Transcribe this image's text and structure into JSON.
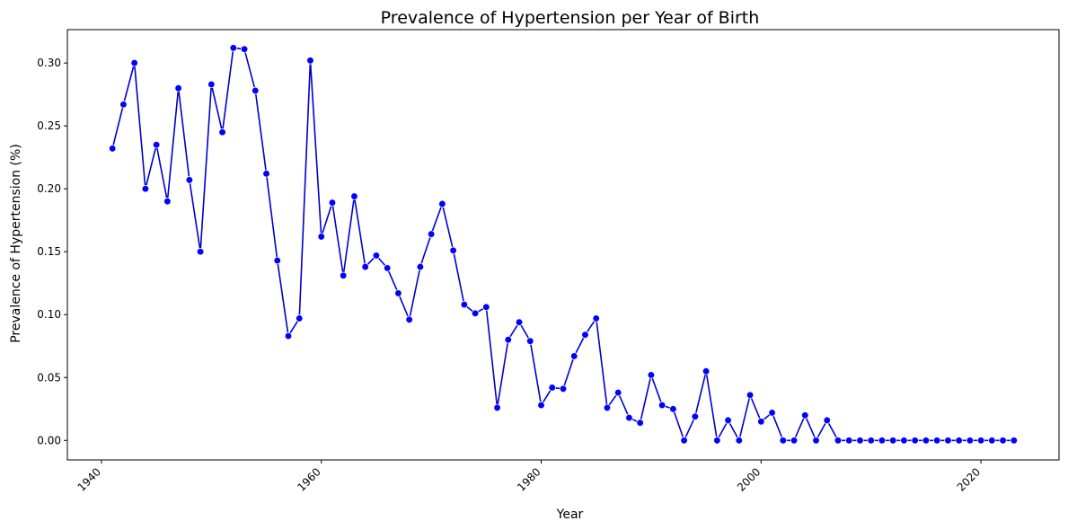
{
  "chart_data": {
    "type": "line",
    "title": "Prevalence of Hypertension per Year of Birth",
    "xlabel": "Year",
    "ylabel": "Prevalence of Hypertension (%)",
    "xlim": [
      1936.9,
      2027.1
    ],
    "ylim": [
      -0.0155,
      0.3265
    ],
    "xticks": [
      1940,
      1960,
      1980,
      2000,
      2020
    ],
    "yticks": [
      0.0,
      0.05,
      0.1,
      0.15,
      0.2,
      0.25,
      0.3
    ],
    "xtick_labels": [
      "1940",
      "1960",
      "1980",
      "2000",
      "2020"
    ],
    "ytick_labels": [
      "0.00",
      "0.05",
      "0.10",
      "0.15",
      "0.20",
      "0.25",
      "0.30"
    ],
    "grid": false,
    "line_color": "#0000cc",
    "marker_color": "#0000ff",
    "x": [
      1941,
      1942,
      1943,
      1944,
      1945,
      1946,
      1947,
      1948,
      1949,
      1950,
      1951,
      1952,
      1953,
      1954,
      1955,
      1956,
      1957,
      1958,
      1959,
      1960,
      1961,
      1962,
      1963,
      1964,
      1965,
      1966,
      1967,
      1968,
      1969,
      1970,
      1971,
      1972,
      1973,
      1974,
      1975,
      1976,
      1977,
      1978,
      1979,
      1980,
      1981,
      1982,
      1983,
      1984,
      1985,
      1986,
      1987,
      1988,
      1989,
      1990,
      1991,
      1992,
      1993,
      1994,
      1995,
      1996,
      1997,
      1998,
      1999,
      2000,
      2001,
      2002,
      2003,
      2004,
      2005,
      2006,
      2007,
      2008,
      2009,
      2010,
      2011,
      2012,
      2013,
      2014,
      2015,
      2016,
      2017,
      2018,
      2019,
      2020,
      2021,
      2022,
      2023
    ],
    "y": [
      0.232,
      0.267,
      0.3,
      0.2,
      0.235,
      0.19,
      0.28,
      0.207,
      0.15,
      0.283,
      0.245,
      0.312,
      0.311,
      0.278,
      0.212,
      0.143,
      0.083,
      0.097,
      0.302,
      0.162,
      0.189,
      0.131,
      0.194,
      0.138,
      0.147,
      0.137,
      0.117,
      0.096,
      0.138,
      0.164,
      0.188,
      0.151,
      0.108,
      0.101,
      0.106,
      0.026,
      0.08,
      0.094,
      0.079,
      0.028,
      0.042,
      0.041,
      0.067,
      0.084,
      0.097,
      0.026,
      0.038,
      0.018,
      0.014,
      0.052,
      0.028,
      0.025,
      0.0,
      0.019,
      0.055,
      0.0,
      0.016,
      0.0,
      0.036,
      0.015,
      0.022,
      0.0,
      0.0,
      0.02,
      0.0,
      0.016,
      0.0,
      0.0,
      0.0,
      0.0,
      0.0,
      0.0,
      0.0,
      0.0,
      0.0,
      0.0,
      0.0,
      0.0,
      0.0,
      0.0,
      0.0,
      0.0,
      0.0
    ]
  }
}
